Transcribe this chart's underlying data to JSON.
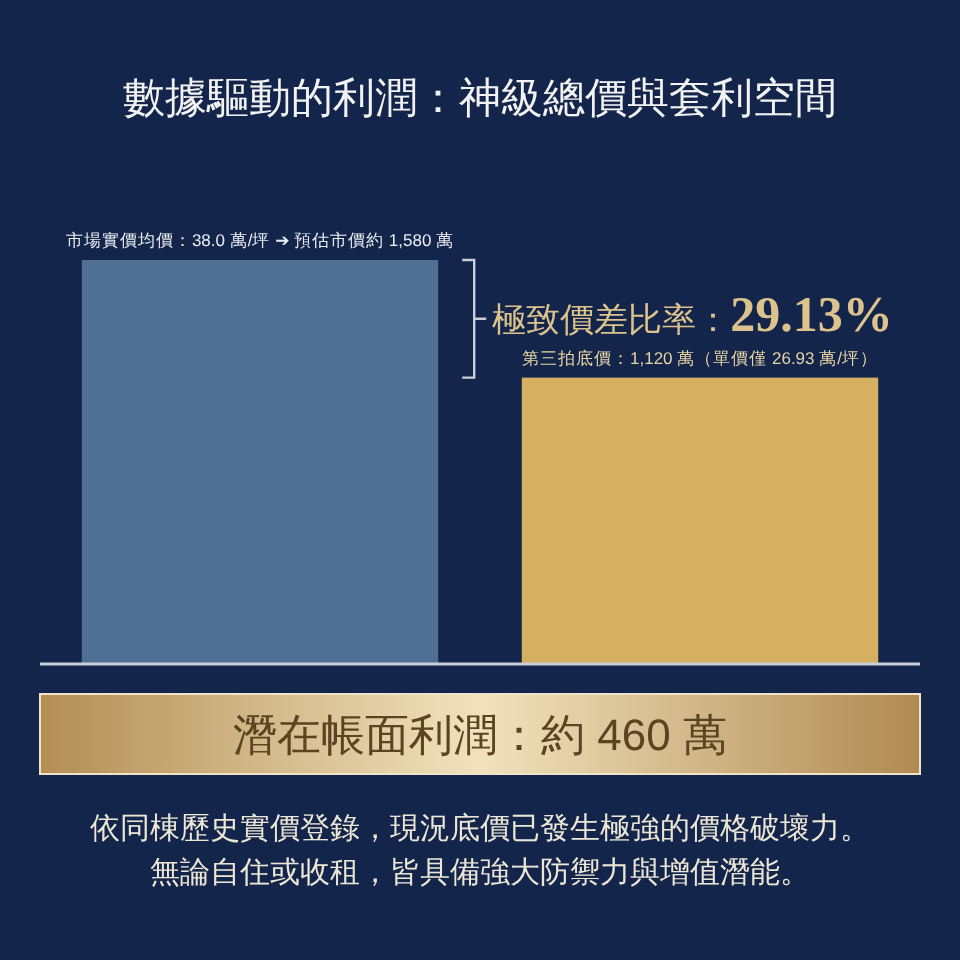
{
  "chart_data": {
    "type": "bar",
    "title": "數據驅動的利潤：神級總價與套利空間",
    "categories": [
      null,
      null
    ],
    "values": [
      1580,
      1120
    ],
    "colors": [
      "#4f6f94",
      "#d6b062"
    ],
    "value_labels": [
      "市場實價均價：38.0 萬/坪 ➔ 預估市價約 1,580 萬",
      "第三拍底價：1,120 萬（單價僅 26.93 萬/坪）"
    ],
    "annotations": [
      "極致價差比率：29.13%",
      "潛在帳面利潤：約 460 萬",
      "依同棟歷史實價登錄，現況底價已發生極強的價格破壞力。",
      "無論自住或收租，皆具備強大防禦力與增值潛能。"
    ]
  }
}
